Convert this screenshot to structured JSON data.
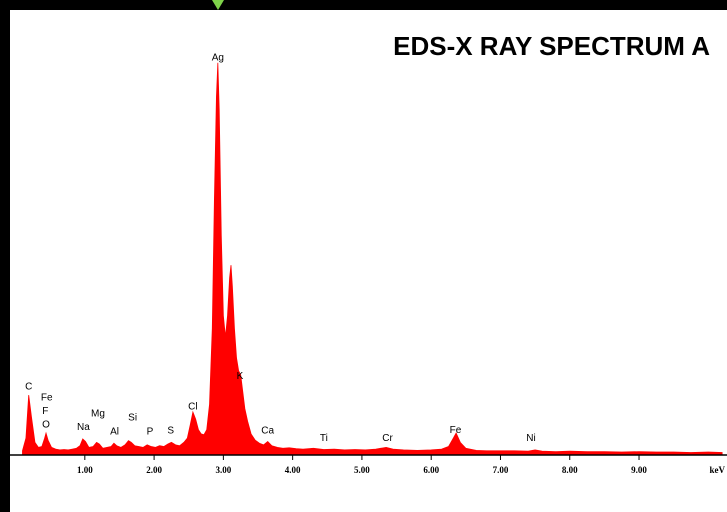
{
  "chart_data": {
    "type": "area",
    "title": "EDS-X RAY SPECTRUM A",
    "x_label": "keV",
    "color": "#ff0000",
    "x": [
      0.1,
      0.15,
      0.19,
      0.23,
      0.28,
      0.33,
      0.38,
      0.42,
      0.44,
      0.47,
      0.52,
      0.58,
      0.64,
      0.7,
      0.76,
      0.82,
      0.88,
      0.93,
      0.97,
      1.01,
      1.06,
      1.12,
      1.17,
      1.21,
      1.26,
      1.32,
      1.38,
      1.42,
      1.46,
      1.52,
      1.58,
      1.63,
      1.67,
      1.72,
      1.78,
      1.84,
      1.9,
      1.96,
      2.02,
      2.08,
      2.14,
      2.2,
      2.25,
      2.31,
      2.37,
      2.43,
      2.48,
      2.52,
      2.56,
      2.6,
      2.64,
      2.68,
      2.72,
      2.76,
      2.8,
      2.84,
      2.87,
      2.9,
      2.92,
      2.94,
      2.97,
      3.0,
      3.03,
      3.06,
      3.09,
      3.11,
      3.13,
      3.16,
      3.19,
      3.22,
      3.25,
      3.28,
      3.31,
      3.35,
      3.4,
      3.46,
      3.52,
      3.58,
      3.64,
      3.7,
      3.78,
      3.86,
      3.95,
      4.05,
      4.15,
      4.3,
      4.45,
      4.6,
      4.75,
      4.9,
      5.05,
      5.2,
      5.35,
      5.45,
      5.6,
      5.8,
      6.0,
      6.15,
      6.25,
      6.32,
      6.36,
      6.42,
      6.5,
      6.65,
      6.8,
      7.0,
      7.2,
      7.4,
      7.5,
      7.6,
      7.8,
      8.0,
      8.25,
      8.5,
      8.75,
      9.0,
      9.25,
      9.5,
      9.75,
      10.0,
      10.2
    ],
    "values": [
      10,
      40,
      142,
      90,
      30,
      18,
      20,
      40,
      52,
      35,
      18,
      14,
      12,
      13,
      12,
      14,
      16,
      22,
      38,
      32,
      18,
      20,
      30,
      26,
      16,
      18,
      20,
      28,
      22,
      18,
      24,
      34,
      30,
      22,
      20,
      18,
      24,
      20,
      18,
      22,
      20,
      26,
      30,
      24,
      22,
      30,
      40,
      70,
      102,
      85,
      60,
      50,
      48,
      60,
      120,
      300,
      600,
      850,
      930,
      820,
      520,
      330,
      280,
      330,
      420,
      450,
      400,
      300,
      230,
      200,
      190,
      150,
      110,
      80,
      50,
      35,
      28,
      24,
      32,
      22,
      18,
      16,
      17,
      15,
      14,
      16,
      13,
      14,
      12,
      13,
      12,
      14,
      18,
      14,
      12,
      11,
      12,
      14,
      20,
      40,
      52,
      30,
      16,
      11,
      10,
      10,
      10,
      9,
      12,
      9,
      8,
      9,
      8,
      8,
      7,
      8,
      7,
      7,
      6,
      7,
      6
    ],
    "xlim": [
      -0.08,
      10.27
    ],
    "ylim": [
      0,
      1055
    ],
    "xticks": [
      {
        "value": 1,
        "label": "1.00"
      },
      {
        "value": 2,
        "label": "2.00"
      },
      {
        "value": 3,
        "label": "3.00"
      },
      {
        "value": 4,
        "label": "4.00"
      },
      {
        "value": 5,
        "label": "5.00"
      },
      {
        "value": 6,
        "label": "6.00"
      },
      {
        "value": 7,
        "label": "7.00"
      },
      {
        "value": 8,
        "label": "8.00"
      },
      {
        "value": 9,
        "label": "9.00"
      }
    ],
    "annotations": [
      {
        "label": "C",
        "x": 0.19,
        "y": 161
      },
      {
        "label": "Fe",
        "x": 0.45,
        "y": 135
      },
      {
        "label": "F",
        "x": 0.43,
        "y": 104
      },
      {
        "label": "O",
        "x": 0.44,
        "y": 71
      },
      {
        "label": "Na",
        "x": 0.98,
        "y": 66
      },
      {
        "label": "Mg",
        "x": 1.19,
        "y": 97
      },
      {
        "label": "Al",
        "x": 1.43,
        "y": 55
      },
      {
        "label": "Si",
        "x": 1.69,
        "y": 88
      },
      {
        "label": "P",
        "x": 1.94,
        "y": 55
      },
      {
        "label": "S",
        "x": 2.24,
        "y": 57
      },
      {
        "label": "Cl",
        "x": 2.56,
        "y": 114
      },
      {
        "label": "Ag",
        "x": 2.92,
        "y": 941
      },
      {
        "label": "K",
        "x": 3.24,
        "y": 187
      },
      {
        "label": "Ca",
        "x": 3.64,
        "y": 57
      },
      {
        "label": "Ti",
        "x": 4.45,
        "y": 40
      },
      {
        "label": "Cr",
        "x": 5.37,
        "y": 40
      },
      {
        "label": "Fe",
        "x": 6.35,
        "y": 59
      },
      {
        "label": "Ni",
        "x": 7.44,
        "y": 40
      }
    ]
  }
}
